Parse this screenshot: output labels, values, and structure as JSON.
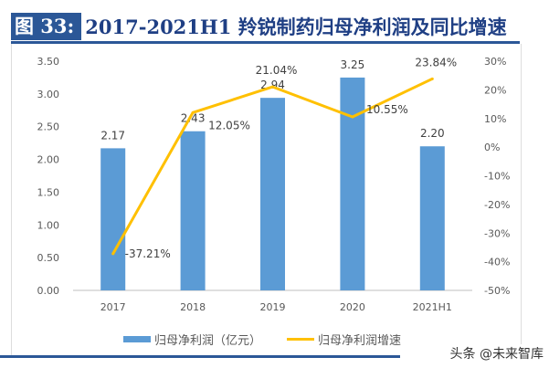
{
  "figure_label": "图 33:",
  "title_text": "2017-2021H1 羚锐制药归母净利润及同比增速",
  "watermark": "头条 @未来智库",
  "chart_data": {
    "type": "bar+line",
    "title": "2017-2021H1 羚锐制药归母净利润及同比增速",
    "categories": [
      "2017",
      "2018",
      "2019",
      "2020",
      "2021H1"
    ],
    "series": [
      {
        "name": "归母净利润（亿元）",
        "type": "bar",
        "axis": "left",
        "color": "#5b9bd5",
        "values": [
          2.17,
          2.43,
          2.94,
          3.25,
          2.2
        ],
        "labels": [
          "2.17",
          "2.43",
          "2.94",
          "3.25",
          "2.20"
        ]
      },
      {
        "name": "归母净利润增速",
        "type": "line",
        "axis": "right",
        "color": "#ffc000",
        "values": [
          -37.21,
          12.05,
          21.04,
          10.55,
          23.84
        ],
        "labels": [
          "-37.21%",
          "12.05%",
          "21.04%",
          "10.55%",
          "23.84%"
        ]
      }
    ],
    "y_left": {
      "lim": [
        0,
        3.5
      ],
      "ticks": [
        "0.00",
        "0.50",
        "1.00",
        "1.50",
        "2.00",
        "2.50",
        "3.00",
        "3.50"
      ]
    },
    "y_right": {
      "lim": [
        -50,
        30
      ],
      "ticks": [
        "-50%",
        "-40%",
        "-30%",
        "-20%",
        "-10%",
        "0%",
        "10%",
        "20%",
        "30%"
      ]
    },
    "grid": false,
    "legend": "bottom"
  }
}
